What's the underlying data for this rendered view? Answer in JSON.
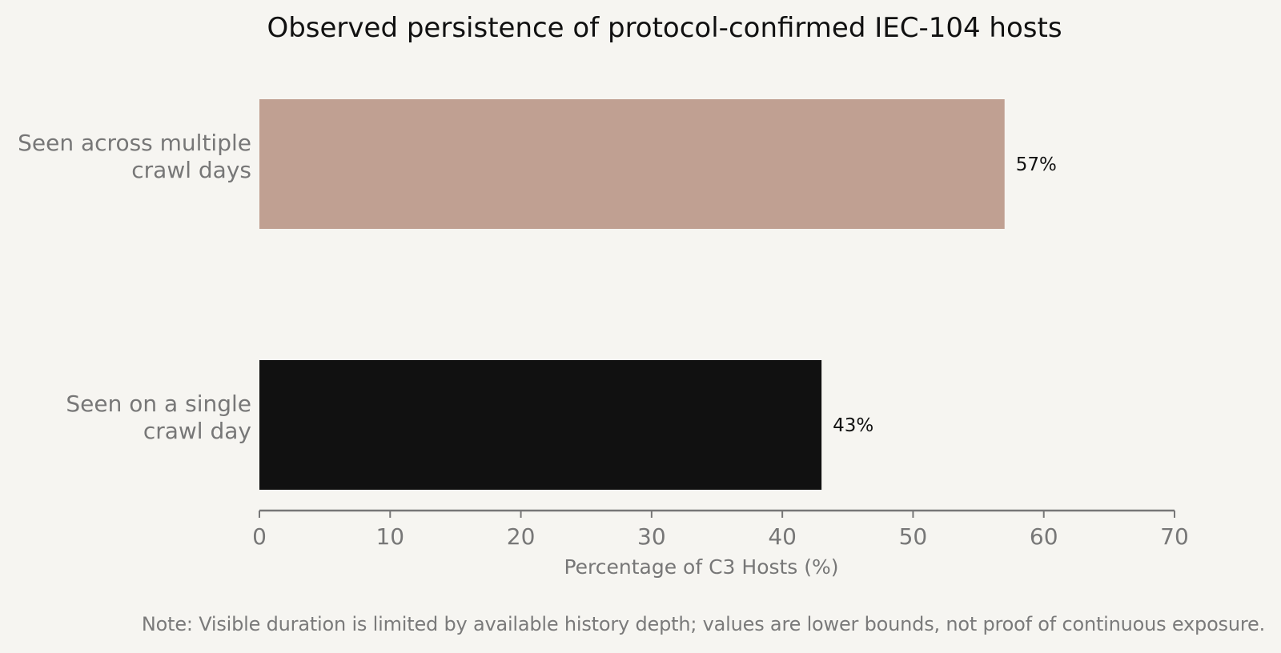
{
  "chart_data": {
    "type": "bar",
    "orientation": "horizontal",
    "title": "Observed persistence of protocol-confirmed IEC-104 hosts",
    "categories": [
      [
        "Seen across multiple",
        "crawl days"
      ],
      [
        "Seen on a single",
        "crawl day"
      ]
    ],
    "values": [
      57,
      43
    ],
    "value_labels": [
      "57%",
      "43%"
    ],
    "bar_colors": [
      "#c0a092",
      "#111111"
    ],
    "xlabel": "Percentage of C3 Hosts (%)",
    "xlim": [
      0,
      70
    ],
    "xticks": [
      0,
      10,
      20,
      30,
      40,
      50,
      60,
      70
    ],
    "grid": false
  },
  "note": "Note: Visible duration is limited by available history depth; values are lower bounds, not proof of continuous exposure."
}
